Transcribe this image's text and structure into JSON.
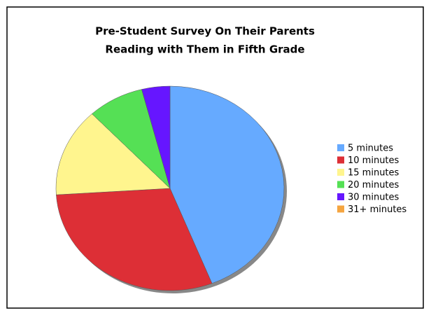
{
  "chart_data": {
    "type": "pie",
    "title": [
      "Pre-Student Survey On Their Parents",
      "Reading with Them in Fifth Grade"
    ],
    "categories": [
      "5 minutes",
      "10 minutes",
      "15 minutes",
      "20 minutes",
      "30 minutes",
      "31+ minutes"
    ],
    "values": [
      44,
      30,
      14,
      8,
      4,
      0
    ],
    "colors": [
      "#66aaff",
      "#dd2f36",
      "#fff58e",
      "#55e055",
      "#6616ff",
      "#f5a540"
    ],
    "legend": "right"
  }
}
